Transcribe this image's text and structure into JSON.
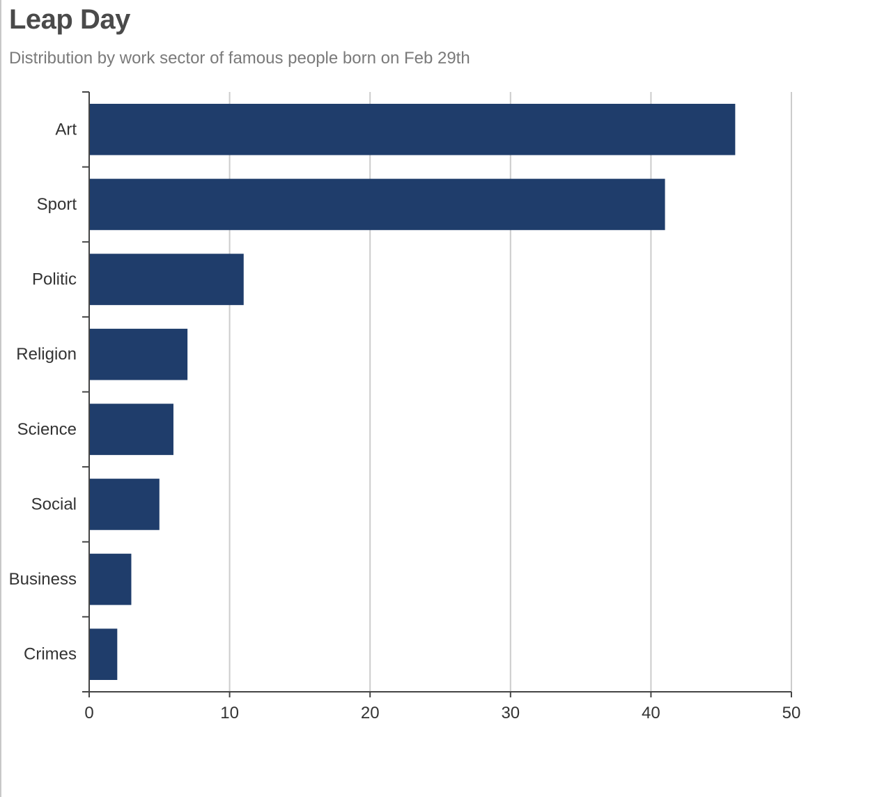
{
  "colors": {
    "bar": "#1f3d6b",
    "grid": "#cccccc",
    "axis": "#444444",
    "label": "#333333"
  },
  "chart_data": {
    "type": "bar",
    "orientation": "horizontal",
    "title": "Leap Day",
    "subtitle": "Distribution by work sector of famous people born on Feb 29th",
    "categories": [
      "Art",
      "Sport",
      "Politic",
      "Religion",
      "Science",
      "Social",
      "Business",
      "Crimes"
    ],
    "values": [
      46,
      41,
      11,
      7,
      6,
      5,
      3,
      2
    ],
    "xlim": [
      0,
      50
    ],
    "xticks": [
      0,
      10,
      20,
      30,
      40,
      50
    ],
    "grid": true,
    "legend": false
  }
}
